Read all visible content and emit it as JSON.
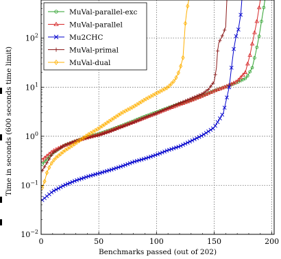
{
  "chart_data": {
    "type": "line",
    "xlabel": "Benchmarks passed (out of 202)",
    "ylabel": "Time in seconds (600 seconds time limit)",
    "xlim": [
      0,
      202
    ],
    "ylim": [
      0.01,
      600
    ],
    "yscale": "log",
    "grid": true,
    "legend_position": "top-left",
    "x_ticks": [
      {
        "value": 0,
        "label": "0"
      },
      {
        "value": 50,
        "label": "50"
      },
      {
        "value": 100,
        "label": "100"
      },
      {
        "value": 150,
        "label": "150"
      },
      {
        "value": 200,
        "label": "200"
      }
    ],
    "y_ticks": [
      {
        "value": 0.01,
        "base": "10",
        "exp": "−2"
      },
      {
        "value": 0.1,
        "base": "10",
        "exp": "−1"
      },
      {
        "value": 1,
        "base": "10",
        "exp": "0"
      },
      {
        "value": 10,
        "base": "10",
        "exp": "1"
      },
      {
        "value": 100,
        "base": "10",
        "exp": "2"
      }
    ],
    "series": [
      {
        "name": "MuVal-parallel-exc",
        "color": "#2ca02c",
        "marker": "circle",
        "points": [
          [
            1,
            0.27
          ],
          [
            10,
            0.45
          ],
          [
            20,
            0.65
          ],
          [
            30,
            0.8
          ],
          [
            40,
            0.97
          ],
          [
            50,
            1.12
          ],
          [
            60,
            1.35
          ],
          [
            70,
            1.65
          ],
          [
            80,
            2.05
          ],
          [
            90,
            2.55
          ],
          [
            100,
            3.1
          ],
          [
            110,
            3.8
          ],
          [
            120,
            4.6
          ],
          [
            130,
            5.5
          ],
          [
            140,
            6.8
          ],
          [
            150,
            8.5
          ],
          [
            160,
            10.2
          ],
          [
            170,
            12.5
          ],
          [
            178,
            15.5
          ],
          [
            183,
            25
          ],
          [
            186,
            50
          ],
          [
            189,
            110
          ],
          [
            191,
            220
          ],
          [
            193,
            420
          ],
          [
            194,
            600
          ]
        ]
      },
      {
        "name": "MuVal-parallel",
        "color": "#d62728",
        "marker": "triangle",
        "points": [
          [
            1,
            0.33
          ],
          [
            10,
            0.5
          ],
          [
            20,
            0.65
          ],
          [
            30,
            0.8
          ],
          [
            40,
            0.95
          ],
          [
            50,
            1.08
          ],
          [
            60,
            1.3
          ],
          [
            70,
            1.6
          ],
          [
            80,
            1.95
          ],
          [
            90,
            2.4
          ],
          [
            100,
            2.95
          ],
          [
            110,
            3.65
          ],
          [
            120,
            4.45
          ],
          [
            130,
            5.4
          ],
          [
            140,
            6.7
          ],
          [
            150,
            8.4
          ],
          [
            160,
            10.3
          ],
          [
            170,
            13.2
          ],
          [
            177,
            20
          ],
          [
            181,
            45
          ],
          [
            184,
            100
          ],
          [
            187,
            220
          ],
          [
            189,
            420
          ],
          [
            190,
            600
          ]
        ]
      },
      {
        "name": "Mu2CHC",
        "color": "#0000cc",
        "marker": "x",
        "points": [
          [
            1,
            0.05
          ],
          [
            5,
            0.06
          ],
          [
            10,
            0.075
          ],
          [
            20,
            0.1
          ],
          [
            30,
            0.125
          ],
          [
            40,
            0.15
          ],
          [
            50,
            0.175
          ],
          [
            60,
            0.205
          ],
          [
            70,
            0.245
          ],
          [
            80,
            0.3
          ],
          [
            90,
            0.35
          ],
          [
            100,
            0.42
          ],
          [
            110,
            0.52
          ],
          [
            120,
            0.62
          ],
          [
            130,
            0.8
          ],
          [
            140,
            1.05
          ],
          [
            150,
            1.5
          ],
          [
            158,
            3
          ],
          [
            163,
            10
          ],
          [
            165,
            25
          ],
          [
            167,
            60
          ],
          [
            169,
            110
          ],
          [
            171,
            150
          ],
          [
            173,
            300
          ],
          [
            174,
            600
          ]
        ]
      },
      {
        "name": "MuVal-primal",
        "color": "#8b1a1a",
        "marker": "plus",
        "points": [
          [
            1,
            0.2
          ],
          [
            10,
            0.45
          ],
          [
            20,
            0.65
          ],
          [
            30,
            0.8
          ],
          [
            40,
            0.92
          ],
          [
            50,
            1.05
          ],
          [
            60,
            1.25
          ],
          [
            70,
            1.55
          ],
          [
            80,
            1.9
          ],
          [
            90,
            2.4
          ],
          [
            100,
            2.95
          ],
          [
            110,
            3.75
          ],
          [
            120,
            4.75
          ],
          [
            130,
            5.9
          ],
          [
            140,
            7.4
          ],
          [
            145,
            9
          ],
          [
            150,
            13
          ],
          [
            152,
            25
          ],
          [
            153,
            55
          ],
          [
            154,
            80
          ],
          [
            156,
            100
          ],
          [
            158,
            125
          ],
          [
            160,
            170
          ],
          [
            161,
            600
          ]
        ]
      },
      {
        "name": "MuVal-dual",
        "color": "#ffb000",
        "marker": "diamond",
        "points": [
          [
            1,
            0.09
          ],
          [
            3,
            0.12
          ],
          [
            5,
            0.18
          ],
          [
            8,
            0.26
          ],
          [
            12,
            0.35
          ],
          [
            20,
            0.5
          ],
          [
            30,
            0.72
          ],
          [
            40,
            1.05
          ],
          [
            50,
            1.45
          ],
          [
            60,
            2.1
          ],
          [
            70,
            3.0
          ],
          [
            80,
            4.0
          ],
          [
            90,
            5.6
          ],
          [
            100,
            7.5
          ],
          [
            110,
            10
          ],
          [
            116,
            14
          ],
          [
            120,
            22
          ],
          [
            123,
            40
          ],
          [
            124,
            90
          ],
          [
            125,
            200
          ],
          [
            126,
            320
          ],
          [
            127,
            450
          ],
          [
            128,
            600
          ]
        ]
      }
    ]
  }
}
